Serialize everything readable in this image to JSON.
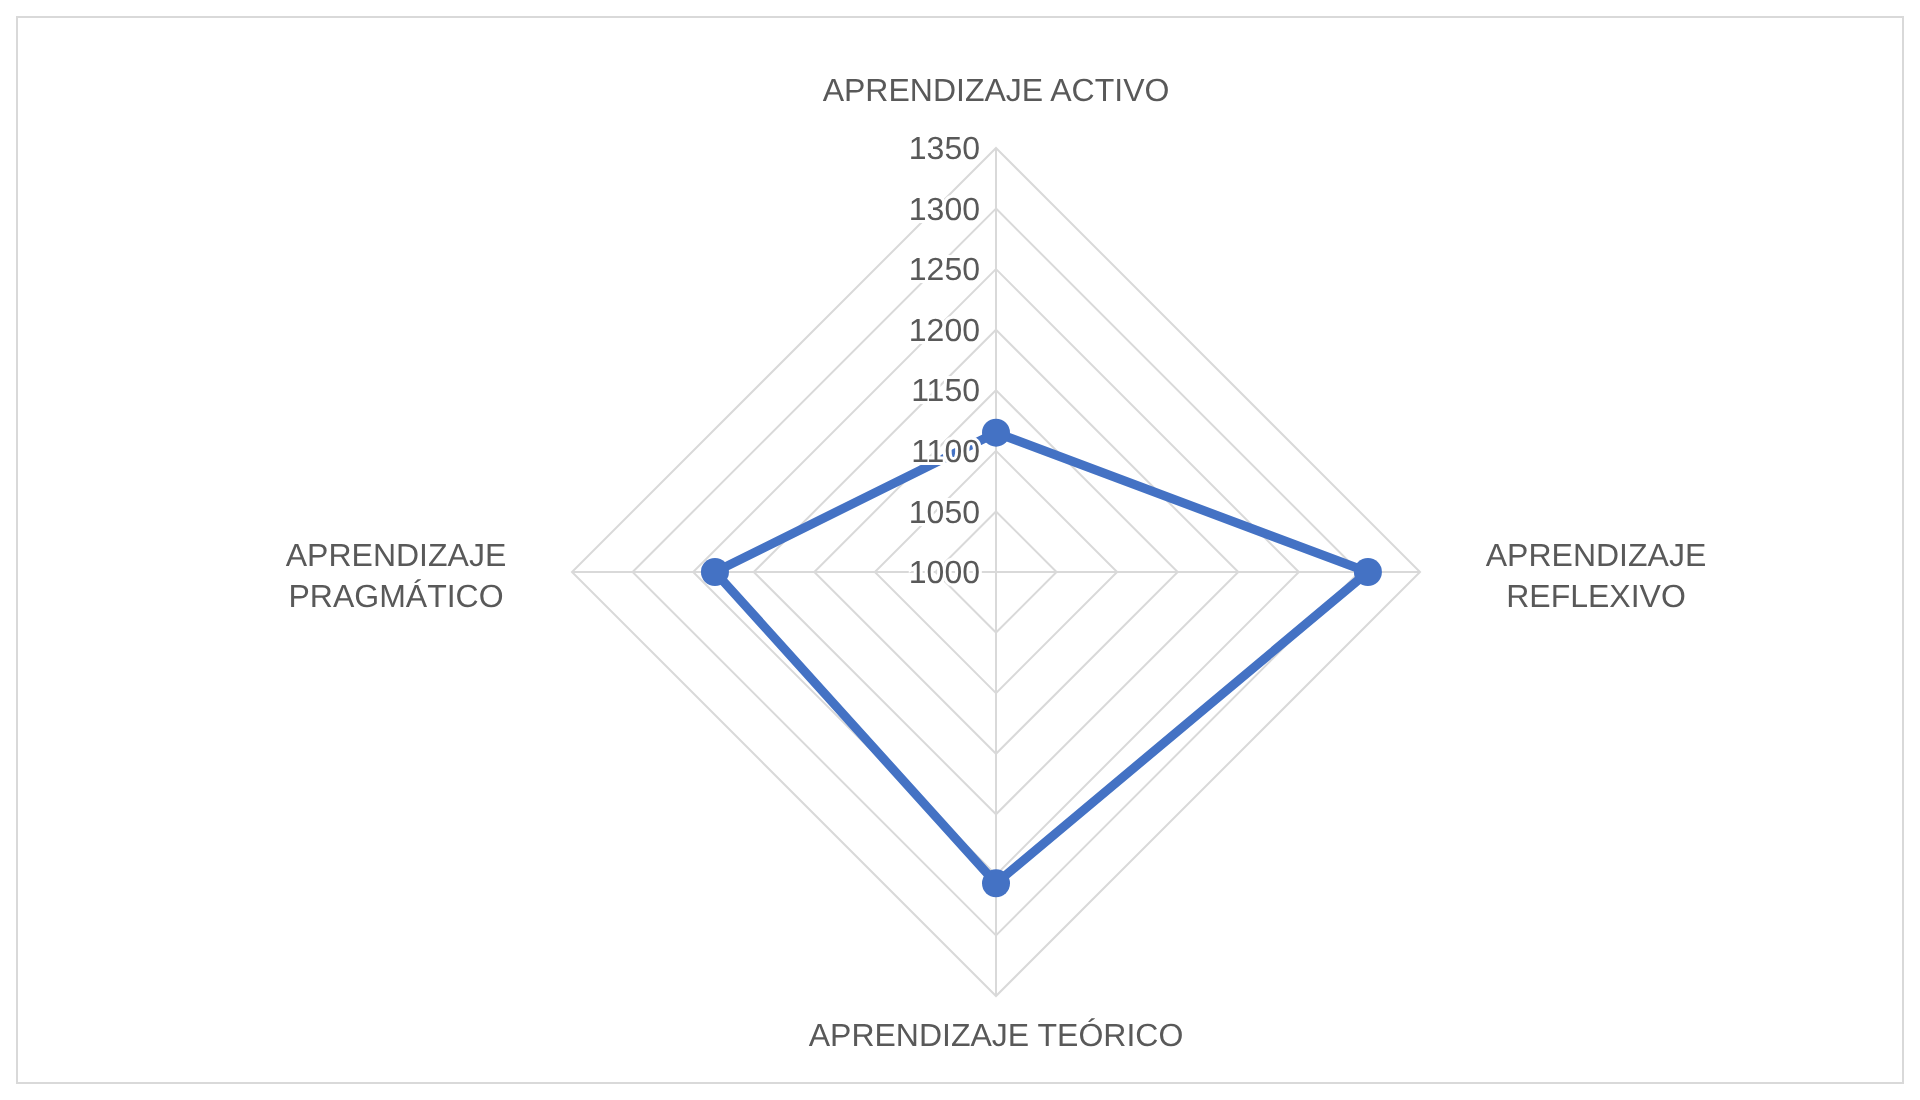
{
  "chart_data": {
    "type": "radar",
    "categories": [
      "APRENDIZAJE ACTIVO",
      "APRENDIZAJE REFLEXIVO",
      "APRENDIZAJE TEÓRICO",
      "APRENDIZAJE PRAGMÁTICO"
    ],
    "series": [
      {
        "color": "#4472c4",
        "values": [
          1115,
          1307,
          1257,
          1232
        ]
      }
    ],
    "ylim": [
      1000,
      1350
    ],
    "yticks": [
      1000,
      1050,
      1100,
      1150,
      1200,
      1250,
      1300,
      1350
    ],
    "grid": true,
    "marker": "circle",
    "line_style": "solid"
  }
}
